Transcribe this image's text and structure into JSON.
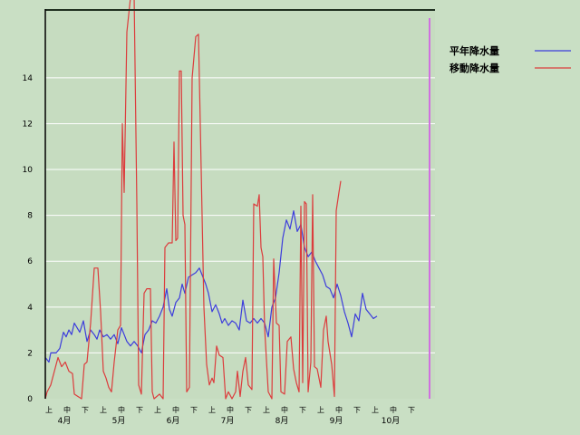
{
  "chart_data": {
    "type": "line",
    "title": "",
    "xlabel": "",
    "ylabel": "",
    "ylim": [
      0,
      17
    ],
    "y_ticks": [
      0,
      2,
      4,
      6,
      8,
      10,
      12,
      14
    ],
    "grid": "horizontal",
    "legend_position": "top-right",
    "x_period_count": 21,
    "decade_labels": [
      "上",
      "中",
      "下",
      "上",
      "中",
      "下",
      "上",
      "中",
      "下",
      "上",
      "中",
      "下",
      "上",
      "中",
      "下",
      "上",
      "中",
      "下",
      "上",
      "中",
      "下"
    ],
    "month_labels": [
      {
        "label": "4月",
        "at": 1
      },
      {
        "label": "5月",
        "at": 4
      },
      {
        "label": "6月",
        "at": 7
      },
      {
        "label": "7月",
        "at": 10
      },
      {
        "label": "8月",
        "at": 13
      },
      {
        "label": "9月",
        "at": 16
      },
      {
        "label": "10月",
        "at": 19
      }
    ],
    "marker_at": 21.2,
    "series": [
      {
        "name": "平年降水量",
        "color": "#3c3cdc",
        "points": [
          [
            0,
            1.8
          ],
          [
            0.1,
            1.7
          ],
          [
            0.2,
            1.6
          ],
          [
            0.3,
            2.0
          ],
          [
            0.6,
            2.0
          ],
          [
            0.8,
            2.2
          ],
          [
            1.0,
            2.9
          ],
          [
            1.15,
            2.7
          ],
          [
            1.3,
            3.0
          ],
          [
            1.45,
            2.8
          ],
          [
            1.6,
            3.3
          ],
          [
            1.75,
            3.1
          ],
          [
            1.9,
            2.9
          ],
          [
            2.1,
            3.4
          ],
          [
            2.3,
            2.5
          ],
          [
            2.5,
            3.0
          ],
          [
            2.7,
            2.8
          ],
          [
            2.85,
            2.6
          ],
          [
            3.0,
            3.0
          ],
          [
            3.2,
            2.7
          ],
          [
            3.4,
            2.8
          ],
          [
            3.6,
            2.6
          ],
          [
            3.8,
            2.8
          ],
          [
            4.0,
            2.4
          ],
          [
            4.2,
            3.1
          ],
          [
            4.35,
            2.8
          ],
          [
            4.5,
            2.5
          ],
          [
            4.7,
            2.3
          ],
          [
            4.9,
            2.5
          ],
          [
            5.1,
            2.3
          ],
          [
            5.3,
            2.0
          ],
          [
            5.5,
            2.8
          ],
          [
            5.7,
            3.0
          ],
          [
            5.9,
            3.4
          ],
          [
            6.1,
            3.3
          ],
          [
            6.3,
            3.6
          ],
          [
            6.5,
            4.0
          ],
          [
            6.7,
            4.8
          ],
          [
            6.85,
            3.9
          ],
          [
            7.0,
            3.6
          ],
          [
            7.2,
            4.2
          ],
          [
            7.4,
            4.4
          ],
          [
            7.55,
            5.0
          ],
          [
            7.7,
            4.6
          ],
          [
            7.9,
            5.3
          ],
          [
            8.1,
            5.4
          ],
          [
            8.3,
            5.5
          ],
          [
            8.5,
            5.7
          ],
          [
            8.7,
            5.3
          ],
          [
            8.85,
            5.0
          ],
          [
            9.0,
            4.6
          ],
          [
            9.2,
            3.8
          ],
          [
            9.4,
            4.1
          ],
          [
            9.6,
            3.7
          ],
          [
            9.75,
            3.3
          ],
          [
            9.9,
            3.5
          ],
          [
            10.1,
            3.2
          ],
          [
            10.3,
            3.4
          ],
          [
            10.5,
            3.3
          ],
          [
            10.7,
            3.0
          ],
          [
            10.9,
            4.3
          ],
          [
            11.1,
            3.4
          ],
          [
            11.3,
            3.3
          ],
          [
            11.5,
            3.5
          ],
          [
            11.7,
            3.3
          ],
          [
            11.9,
            3.5
          ],
          [
            12.1,
            3.3
          ],
          [
            12.3,
            2.7
          ],
          [
            12.5,
            4.0
          ],
          [
            12.7,
            4.4
          ],
          [
            12.9,
            5.5
          ],
          [
            13.1,
            7.0
          ],
          [
            13.3,
            7.8
          ],
          [
            13.5,
            7.4
          ],
          [
            13.7,
            8.2
          ],
          [
            13.9,
            7.3
          ],
          [
            14.1,
            7.6
          ],
          [
            14.3,
            6.6
          ],
          [
            14.5,
            6.2
          ],
          [
            14.7,
            6.4
          ],
          [
            14.9,
            6.0
          ],
          [
            15.1,
            5.7
          ],
          [
            15.3,
            5.4
          ],
          [
            15.5,
            4.9
          ],
          [
            15.7,
            4.8
          ],
          [
            15.9,
            4.4
          ],
          [
            16.1,
            5.0
          ],
          [
            16.3,
            4.5
          ],
          [
            16.5,
            3.8
          ],
          [
            16.7,
            3.3
          ],
          [
            16.9,
            2.7
          ],
          [
            17.1,
            3.7
          ],
          [
            17.3,
            3.4
          ],
          [
            17.5,
            4.6
          ],
          [
            17.7,
            3.9
          ],
          [
            17.9,
            3.7
          ],
          [
            18.1,
            3.5
          ],
          [
            18.3,
            3.6
          ]
        ]
      },
      {
        "name": "移動降水量",
        "color": "#dc3c3c",
        "points": [
          [
            0,
            0
          ],
          [
            0.1,
            0.3
          ],
          [
            0.3,
            0.6
          ],
          [
            0.5,
            1.2
          ],
          [
            0.7,
            1.8
          ],
          [
            0.9,
            1.4
          ],
          [
            1.1,
            1.6
          ],
          [
            1.3,
            1.2
          ],
          [
            1.5,
            1.1
          ],
          [
            1.6,
            0.2
          ],
          [
            1.8,
            0.1
          ],
          [
            2.0,
            0.0
          ],
          [
            2.15,
            1.5
          ],
          [
            2.3,
            1.6
          ],
          [
            2.5,
            3.3
          ],
          [
            2.7,
            5.7
          ],
          [
            2.9,
            5.7
          ],
          [
            3.05,
            3.8
          ],
          [
            3.2,
            1.2
          ],
          [
            3.35,
            0.9
          ],
          [
            3.5,
            0.5
          ],
          [
            3.65,
            0.3
          ],
          [
            3.8,
            1.6
          ],
          [
            4.0,
            3.0
          ],
          [
            4.15,
            3.2
          ],
          [
            4.25,
            12.0
          ],
          [
            4.35,
            9.0
          ],
          [
            4.5,
            16.0
          ],
          [
            4.7,
            17.5
          ],
          [
            4.9,
            17.6
          ],
          [
            5.05,
            8.5
          ],
          [
            5.15,
            0.6
          ],
          [
            5.3,
            0.2
          ],
          [
            5.45,
            4.6
          ],
          [
            5.6,
            4.8
          ],
          [
            5.8,
            4.8
          ],
          [
            5.9,
            0.3
          ],
          [
            6.0,
            0.0
          ],
          [
            6.3,
            0.2
          ],
          [
            6.5,
            0.0
          ],
          [
            6.6,
            6.6
          ],
          [
            6.8,
            6.8
          ],
          [
            7.0,
            6.8
          ],
          [
            7.1,
            11.2
          ],
          [
            7.2,
            6.9
          ],
          [
            7.3,
            7.0
          ],
          [
            7.4,
            14.3
          ],
          [
            7.5,
            14.3
          ],
          [
            7.6,
            8.0
          ],
          [
            7.7,
            7.6
          ],
          [
            7.8,
            0.3
          ],
          [
            7.95,
            0.5
          ],
          [
            8.1,
            14.0
          ],
          [
            8.3,
            15.8
          ],
          [
            8.45,
            15.9
          ],
          [
            8.6,
            10.0
          ],
          [
            8.75,
            4.0
          ],
          [
            8.9,
            1.5
          ],
          [
            9.05,
            0.6
          ],
          [
            9.2,
            0.9
          ],
          [
            9.3,
            0.7
          ],
          [
            9.45,
            2.3
          ],
          [
            9.6,
            1.9
          ],
          [
            9.8,
            1.8
          ],
          [
            9.95,
            0.0
          ],
          [
            10.1,
            0.3
          ],
          [
            10.3,
            0.0
          ],
          [
            10.5,
            0.3
          ],
          [
            10.6,
            1.2
          ],
          [
            10.75,
            0.1
          ],
          [
            10.9,
            1.2
          ],
          [
            11.05,
            1.8
          ],
          [
            11.2,
            0.6
          ],
          [
            11.4,
            0.4
          ],
          [
            11.5,
            8.5
          ],
          [
            11.7,
            8.4
          ],
          [
            11.8,
            8.9
          ],
          [
            11.9,
            6.6
          ],
          [
            12.0,
            6.2
          ],
          [
            12.1,
            3.1
          ],
          [
            12.3,
            0.3
          ],
          [
            12.5,
            0.0
          ],
          [
            12.6,
            6.1
          ],
          [
            12.75,
            3.3
          ],
          [
            12.9,
            3.2
          ],
          [
            13.0,
            0.3
          ],
          [
            13.2,
            0.2
          ],
          [
            13.35,
            2.5
          ],
          [
            13.55,
            2.7
          ],
          [
            13.7,
            1.3
          ],
          [
            13.85,
            0.7
          ],
          [
            14.0,
            0.3
          ],
          [
            14.1,
            8.4
          ],
          [
            14.2,
            0.7
          ],
          [
            14.3,
            8.6
          ],
          [
            14.4,
            8.5
          ],
          [
            14.5,
            0.3
          ],
          [
            14.65,
            1.6
          ],
          [
            14.75,
            8.9
          ],
          [
            14.85,
            1.4
          ],
          [
            15.0,
            1.3
          ],
          [
            15.2,
            0.5
          ],
          [
            15.35,
            3.0
          ],
          [
            15.5,
            3.6
          ],
          [
            15.6,
            2.5
          ],
          [
            15.8,
            1.5
          ],
          [
            15.95,
            0.1
          ],
          [
            16.05,
            8.2
          ],
          [
            16.2,
            9.0
          ],
          [
            16.3,
            9.5
          ]
        ]
      }
    ]
  }
}
